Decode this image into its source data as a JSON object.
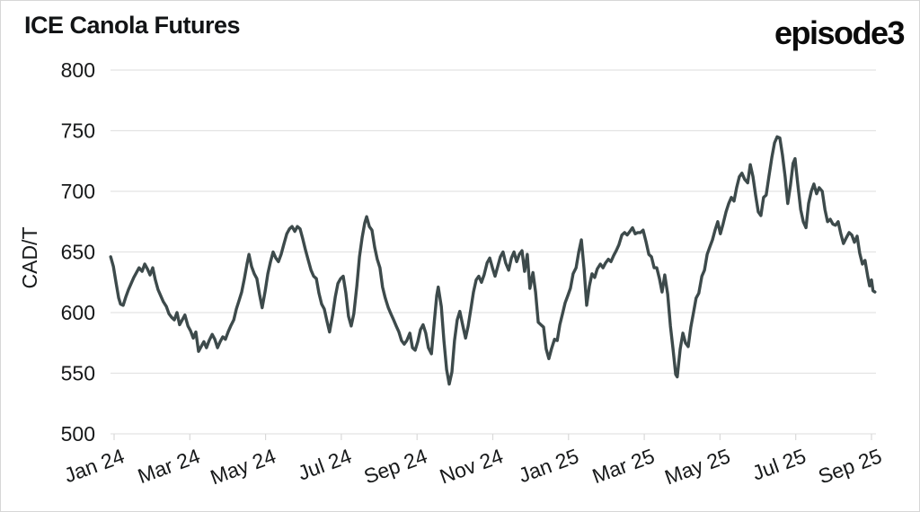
{
  "header": {
    "title": "ICE Canola Futures",
    "brand": "episode3"
  },
  "colors": {
    "line": "#3d4a4b",
    "grid": "#e3e3e3",
    "tick": "#d9d9d9",
    "text": "#17191a",
    "background": "#ffffff",
    "frame": "#d6d6d6"
  },
  "chart_data": {
    "type": "line",
    "title": "ICE Canola Futures",
    "ylabel": "CAD/T",
    "xlabel": "",
    "ylim": [
      500,
      800
    ],
    "yticks": [
      800,
      750,
      700,
      650,
      600,
      550,
      500
    ],
    "xtick_labels": [
      "Jan 24",
      "Mar 24",
      "May 24",
      "Jul 24",
      "Sep 24",
      "Nov 24",
      "Jan 25",
      "Mar 25",
      "May 25",
      "Jul 25",
      "Sep 25"
    ],
    "xtick_positions_months": [
      0,
      2,
      4,
      6,
      8,
      10,
      12,
      14,
      16,
      18,
      20
    ],
    "x_axis_note": "x = months since 2024-01-01",
    "xlim_months": [
      -0.2,
      20.2
    ],
    "grid": "horizontal",
    "legend": "none",
    "series": [
      {
        "name": "ICE Canola Futures (CAD/T)",
        "points": [
          [
            -0.09,
            646
          ],
          [
            -0.02,
            638
          ],
          [
            0.05,
            625
          ],
          [
            0.12,
            612
          ],
          [
            0.17,
            607
          ],
          [
            0.24,
            606
          ],
          [
            0.31,
            613
          ],
          [
            0.38,
            619
          ],
          [
            0.45,
            624
          ],
          [
            0.52,
            629
          ],
          [
            0.59,
            633
          ],
          [
            0.66,
            637
          ],
          [
            0.74,
            634
          ],
          [
            0.81,
            640
          ],
          [
            0.88,
            636
          ],
          [
            0.95,
            631
          ],
          [
            1.02,
            637
          ],
          [
            1.09,
            627
          ],
          [
            1.16,
            619
          ],
          [
            1.23,
            614
          ],
          [
            1.3,
            609
          ],
          [
            1.38,
            605
          ],
          [
            1.45,
            599
          ],
          [
            1.52,
            596
          ],
          [
            1.59,
            594
          ],
          [
            1.66,
            600
          ],
          [
            1.73,
            590
          ],
          [
            1.8,
            594
          ],
          [
            1.87,
            598
          ],
          [
            1.95,
            589
          ],
          [
            2.02,
            585
          ],
          [
            2.09,
            579
          ],
          [
            2.16,
            584
          ],
          [
            2.23,
            568
          ],
          [
            2.3,
            572
          ],
          [
            2.37,
            576
          ],
          [
            2.44,
            571
          ],
          [
            2.51,
            577
          ],
          [
            2.59,
            582
          ],
          [
            2.66,
            578
          ],
          [
            2.73,
            571
          ],
          [
            2.8,
            576
          ],
          [
            2.87,
            580
          ],
          [
            2.94,
            578
          ],
          [
            3.01,
            584
          ],
          [
            3.08,
            589
          ],
          [
            3.16,
            594
          ],
          [
            3.23,
            603
          ],
          [
            3.3,
            610
          ],
          [
            3.37,
            617
          ],
          [
            3.44,
            628
          ],
          [
            3.51,
            640
          ],
          [
            3.56,
            648
          ],
          [
            3.63,
            638
          ],
          [
            3.7,
            632
          ],
          [
            3.77,
            628
          ],
          [
            3.84,
            615
          ],
          [
            3.91,
            604
          ],
          [
            3.99,
            618
          ],
          [
            4.06,
            632
          ],
          [
            4.13,
            642
          ],
          [
            4.2,
            650
          ],
          [
            4.27,
            645
          ],
          [
            4.34,
            642
          ],
          [
            4.41,
            648
          ],
          [
            4.48,
            656
          ],
          [
            4.56,
            665
          ],
          [
            4.63,
            669
          ],
          [
            4.7,
            671
          ],
          [
            4.77,
            667
          ],
          [
            4.84,
            671
          ],
          [
            4.91,
            669
          ],
          [
            4.98,
            661
          ],
          [
            5.05,
            652
          ],
          [
            5.12,
            644
          ],
          [
            5.2,
            635
          ],
          [
            5.27,
            630
          ],
          [
            5.34,
            628
          ],
          [
            5.41,
            616
          ],
          [
            5.48,
            607
          ],
          [
            5.55,
            603
          ],
          [
            5.62,
            593
          ],
          [
            5.69,
            584
          ],
          [
            5.77,
            598
          ],
          [
            5.84,
            613
          ],
          [
            5.91,
            624
          ],
          [
            5.98,
            628
          ],
          [
            6.05,
            630
          ],
          [
            6.12,
            616
          ],
          [
            6.19,
            597
          ],
          [
            6.26,
            589
          ],
          [
            6.33,
            599
          ],
          [
            6.41,
            622
          ],
          [
            6.48,
            646
          ],
          [
            6.55,
            662
          ],
          [
            6.62,
            674
          ],
          [
            6.67,
            679
          ],
          [
            6.74,
            671
          ],
          [
            6.81,
            668
          ],
          [
            6.88,
            654
          ],
          [
            6.95,
            644
          ],
          [
            7.02,
            637
          ],
          [
            7.09,
            621
          ],
          [
            7.16,
            612
          ],
          [
            7.24,
            604
          ],
          [
            7.31,
            599
          ],
          [
            7.38,
            594
          ],
          [
            7.45,
            589
          ],
          [
            7.52,
            584
          ],
          [
            7.59,
            577
          ],
          [
            7.66,
            574
          ],
          [
            7.73,
            577
          ],
          [
            7.81,
            583
          ],
          [
            7.88,
            571
          ],
          [
            7.95,
            569
          ],
          [
            8.02,
            576
          ],
          [
            8.09,
            586
          ],
          [
            8.16,
            590
          ],
          [
            8.23,
            583
          ],
          [
            8.3,
            571
          ],
          [
            8.38,
            566
          ],
          [
            8.45,
            591
          ],
          [
            8.52,
            614
          ],
          [
            8.56,
            621
          ],
          [
            8.64,
            605
          ],
          [
            8.71,
            577
          ],
          [
            8.78,
            553
          ],
          [
            8.85,
            541
          ],
          [
            8.92,
            551
          ],
          [
            8.99,
            577
          ],
          [
            9.06,
            594
          ],
          [
            9.13,
            601
          ],
          [
            9.21,
            589
          ],
          [
            9.28,
            579
          ],
          [
            9.35,
            589
          ],
          [
            9.42,
            603
          ],
          [
            9.49,
            617
          ],
          [
            9.56,
            627
          ],
          [
            9.63,
            630
          ],
          [
            9.7,
            625
          ],
          [
            9.77,
            631
          ],
          [
            9.85,
            641
          ],
          [
            9.92,
            645
          ],
          [
            9.99,
            637
          ],
          [
            10.06,
            630
          ],
          [
            10.13,
            638
          ],
          [
            10.2,
            646
          ],
          [
            10.27,
            650
          ],
          [
            10.34,
            641
          ],
          [
            10.42,
            635
          ],
          [
            10.49,
            645
          ],
          [
            10.56,
            650
          ],
          [
            10.63,
            642
          ],
          [
            10.7,
            648
          ],
          [
            10.77,
            651
          ],
          [
            10.84,
            634
          ],
          [
            10.91,
            648
          ],
          [
            10.98,
            620
          ],
          [
            11.06,
            633
          ],
          [
            11.13,
            617
          ],
          [
            11.2,
            592
          ],
          [
            11.27,
            590
          ],
          [
            11.34,
            588
          ],
          [
            11.41,
            570
          ],
          [
            11.48,
            562
          ],
          [
            11.55,
            570
          ],
          [
            11.63,
            578
          ],
          [
            11.7,
            577
          ],
          [
            11.77,
            590
          ],
          [
            11.84,
            599
          ],
          [
            11.91,
            608
          ],
          [
            11.98,
            614
          ],
          [
            12.05,
            620
          ],
          [
            12.12,
            632
          ],
          [
            12.2,
            637
          ],
          [
            12.27,
            650
          ],
          [
            12.34,
            660
          ],
          [
            12.41,
            636
          ],
          [
            12.48,
            606
          ],
          [
            12.55,
            622
          ],
          [
            12.62,
            632
          ],
          [
            12.69,
            629
          ],
          [
            12.76,
            636
          ],
          [
            12.84,
            640
          ],
          [
            12.91,
            637
          ],
          [
            12.98,
            641
          ],
          [
            13.05,
            644
          ],
          [
            13.12,
            642
          ],
          [
            13.19,
            647
          ],
          [
            13.26,
            651
          ],
          [
            13.33,
            656
          ],
          [
            13.41,
            664
          ],
          [
            13.48,
            666
          ],
          [
            13.55,
            664
          ],
          [
            13.62,
            667
          ],
          [
            13.69,
            670
          ],
          [
            13.76,
            665
          ],
          [
            13.83,
            666
          ],
          [
            13.9,
            666
          ],
          [
            13.97,
            668
          ],
          [
            14.05,
            658
          ],
          [
            14.12,
            648
          ],
          [
            14.19,
            646
          ],
          [
            14.26,
            637
          ],
          [
            14.33,
            637
          ],
          [
            14.4,
            628
          ],
          [
            14.47,
            617
          ],
          [
            14.54,
            631
          ],
          [
            14.62,
            615
          ],
          [
            14.69,
            589
          ],
          [
            14.76,
            570
          ],
          [
            14.83,
            549
          ],
          [
            14.87,
            547
          ],
          [
            14.95,
            570
          ],
          [
            15.02,
            583
          ],
          [
            15.09,
            575
          ],
          [
            15.16,
            572
          ],
          [
            15.23,
            588
          ],
          [
            15.3,
            600
          ],
          [
            15.37,
            612
          ],
          [
            15.44,
            616
          ],
          [
            15.52,
            630
          ],
          [
            15.59,
            635
          ],
          [
            15.66,
            648
          ],
          [
            15.73,
            654
          ],
          [
            15.8,
            660
          ],
          [
            15.87,
            668
          ],
          [
            15.94,
            675
          ],
          [
            16.01,
            665
          ],
          [
            16.08,
            673
          ],
          [
            16.16,
            683
          ],
          [
            16.23,
            690
          ],
          [
            16.3,
            695
          ],
          [
            16.37,
            692
          ],
          [
            16.44,
            703
          ],
          [
            16.51,
            712
          ],
          [
            16.58,
            715
          ],
          [
            16.65,
            710
          ],
          [
            16.73,
            707
          ],
          [
            16.8,
            722
          ],
          [
            16.87,
            712
          ],
          [
            16.94,
            697
          ],
          [
            17.01,
            683
          ],
          [
            17.08,
            680
          ],
          [
            17.15,
            695
          ],
          [
            17.22,
            697
          ],
          [
            17.29,
            712
          ],
          [
            17.37,
            728
          ],
          [
            17.44,
            740
          ],
          [
            17.51,
            745
          ],
          [
            17.58,
            744
          ],
          [
            17.65,
            730
          ],
          [
            17.72,
            712
          ],
          [
            17.79,
            690
          ],
          [
            17.86,
            705
          ],
          [
            17.93,
            723
          ],
          [
            17.98,
            727
          ],
          [
            18.05,
            707
          ],
          [
            18.13,
            685
          ],
          [
            18.2,
            675
          ],
          [
            18.27,
            670
          ],
          [
            18.34,
            690
          ],
          [
            18.41,
            700
          ],
          [
            18.48,
            706
          ],
          [
            18.55,
            698
          ],
          [
            18.62,
            703
          ],
          [
            18.7,
            700
          ],
          [
            18.77,
            685
          ],
          [
            18.84,
            675
          ],
          [
            18.91,
            677
          ],
          [
            18.98,
            673
          ],
          [
            19.05,
            672
          ],
          [
            19.12,
            675
          ],
          [
            19.19,
            665
          ],
          [
            19.26,
            657
          ],
          [
            19.34,
            662
          ],
          [
            19.41,
            666
          ],
          [
            19.48,
            664
          ],
          [
            19.55,
            658
          ],
          [
            19.62,
            663
          ],
          [
            19.69,
            649
          ],
          [
            19.76,
            640
          ],
          [
            19.83,
            643
          ],
          [
            19.9,
            630
          ],
          [
            19.95,
            622
          ],
          [
            20.0,
            627
          ],
          [
            20.04,
            618
          ],
          [
            20.09,
            617
          ]
        ]
      }
    ]
  }
}
